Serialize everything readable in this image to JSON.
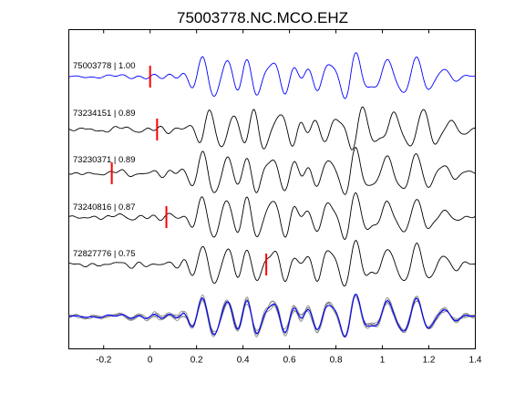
{
  "chart_data": {
    "type": "line",
    "title": "75003778.NC.MCO.EHZ",
    "xlabel": "",
    "ylabel": "",
    "xlim": [
      -0.35,
      1.4
    ],
    "xticks": [
      -0.2,
      0,
      0.2,
      0.4,
      0.6,
      0.8,
      1,
      1.2,
      1.4
    ],
    "xtick_labels": [
      "-0.2",
      "0",
      "0.2",
      "0.4",
      "0.6",
      "0.8",
      "1",
      "1.2",
      "1.4"
    ],
    "grid": false,
    "stack_label": "",
    "traces": [
      {
        "label": "75003778 | 1.00",
        "event_id": "75003778",
        "correlation": 1.0,
        "pick_time": 0.0,
        "color": "#0000ff",
        "shift": 0.0
      },
      {
        "label": "73234151 | 0.89",
        "event_id": "73234151",
        "correlation": 0.89,
        "pick_time": 0.03,
        "color": "#000000",
        "shift": 0.03
      },
      {
        "label": "73230371 | 0.89",
        "event_id": "73230371",
        "correlation": 0.89,
        "pick_time": -0.165,
        "color": "#000000",
        "shift": 0.0
      },
      {
        "label": "73240816 | 0.87",
        "event_id": "73240816",
        "correlation": 0.87,
        "pick_time": 0.07,
        "color": "#000000",
        "shift": 0.0
      },
      {
        "label": "72827776 | 0.75",
        "event_id": "72827776",
        "correlation": 0.75,
        "pick_time": 0.5,
        "color": "#000000",
        "shift": 0.0
      }
    ],
    "pick_color": "#ff0000",
    "stack_colors": [
      "#0000ff",
      "#808080"
    ]
  }
}
